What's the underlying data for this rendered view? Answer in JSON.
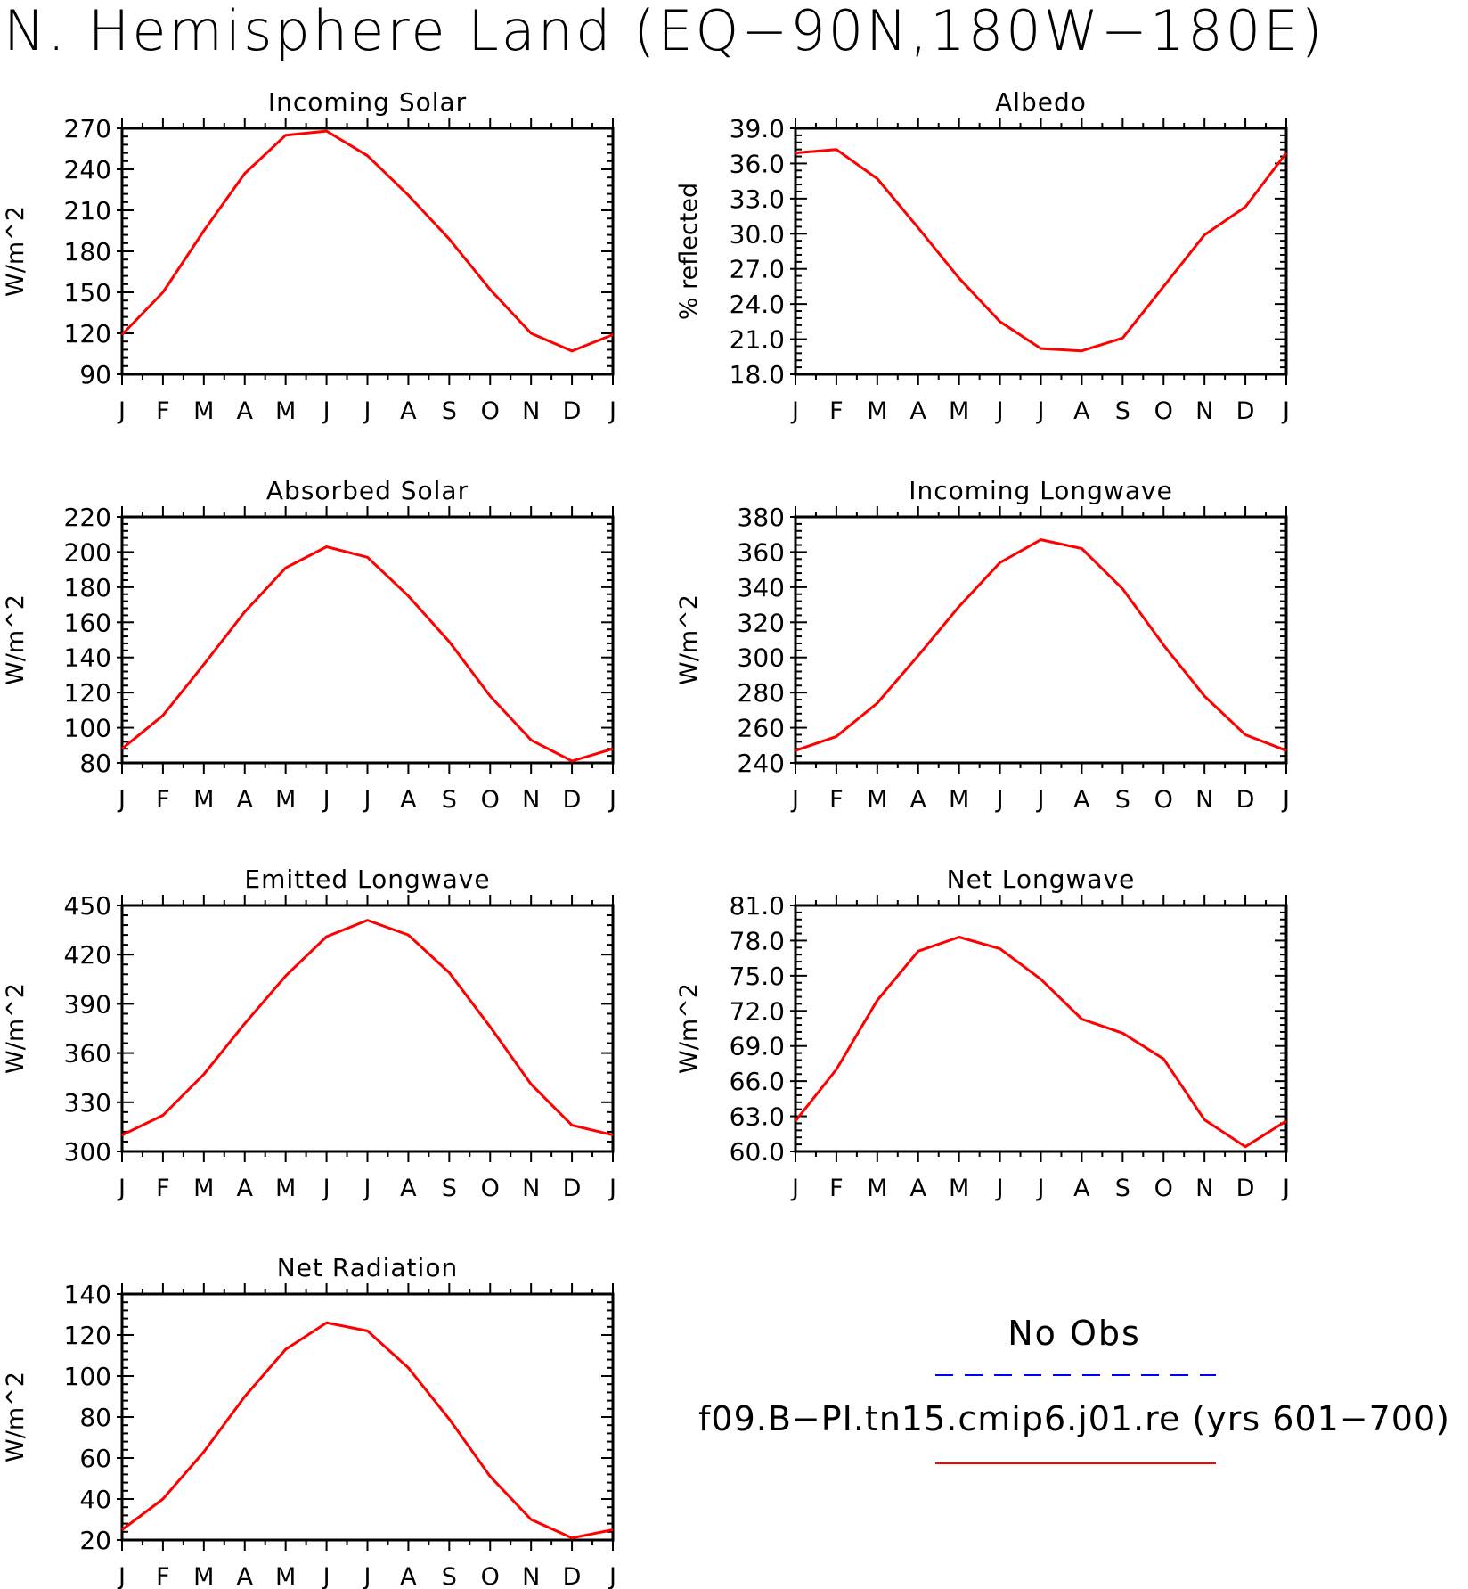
{
  "title": "N. Hemisphere Land (EQ−90N,180W−180E)",
  "line_color": "#ff0000",
  "obs_line_color": "#0000ff",
  "months": [
    "J",
    "F",
    "M",
    "A",
    "M",
    "J",
    "J",
    "A",
    "S",
    "O",
    "N",
    "D",
    "J"
  ],
  "legend": {
    "obs_label": "No Obs",
    "case_label": "f09.B−PI.tn15.cmip6.j01.re (yrs 601−700)"
  },
  "chart_data": [
    {
      "type": "line",
      "title": "Incoming Solar",
      "ylabel": "W/m^2",
      "ylim": [
        90,
        270
      ],
      "yticks": [
        90,
        120,
        150,
        180,
        210,
        240,
        270
      ],
      "ydecimals": 0,
      "values": [
        119,
        150,
        195,
        237,
        265,
        268,
        250,
        221,
        189,
        152,
        120,
        107,
        119
      ]
    },
    {
      "type": "line",
      "title": "Albedo",
      "ylabel": "% reflected",
      "ylim": [
        18,
        39
      ],
      "yticks": [
        18,
        21,
        24,
        27,
        30,
        33,
        36,
        39
      ],
      "ydecimals": 1,
      "values": [
        36.9,
        37.2,
        34.7,
        30.5,
        26.2,
        22.5,
        20.2,
        20.0,
        21.1,
        25.5,
        29.9,
        32.3,
        36.9
      ]
    },
    {
      "type": "line",
      "title": "Absorbed Solar",
      "ylabel": "W/m^2",
      "ylim": [
        80,
        220
      ],
      "yticks": [
        80,
        100,
        120,
        140,
        160,
        180,
        200,
        220
      ],
      "ydecimals": 0,
      "values": [
        88,
        107,
        136,
        166,
        191,
        203,
        197,
        175,
        149,
        118,
        93,
        81,
        88
      ]
    },
    {
      "type": "line",
      "title": "Incoming Longwave",
      "ylabel": "W/m^2",
      "ylim": [
        240,
        380
      ],
      "yticks": [
        240,
        260,
        280,
        300,
        320,
        340,
        360,
        380
      ],
      "ydecimals": 0,
      "values": [
        247,
        255,
        274,
        301,
        329,
        354,
        367,
        362,
        339,
        307,
        278,
        256,
        247
      ]
    },
    {
      "type": "line",
      "title": "Emitted Longwave",
      "ylabel": "W/m^2",
      "ylim": [
        300,
        450
      ],
      "yticks": [
        300,
        330,
        360,
        390,
        420,
        450
      ],
      "ydecimals": 0,
      "values": [
        310,
        322,
        347,
        378,
        407,
        431,
        441,
        432,
        409,
        376,
        341,
        316,
        310
      ]
    },
    {
      "type": "line",
      "title": "Net Longwave",
      "ylabel": "W/m^2",
      "ylim": [
        60,
        81
      ],
      "yticks": [
        60,
        63,
        66,
        69,
        72,
        75,
        78,
        81
      ],
      "ydecimals": 1,
      "values": [
        62.6,
        67.0,
        72.9,
        77.1,
        78.3,
        77.3,
        74.7,
        71.3,
        70.1,
        67.9,
        62.7,
        60.4,
        62.6
      ]
    },
    {
      "type": "line",
      "title": "Net Radiation",
      "ylabel": "W/m^2",
      "ylim": [
        20,
        140
      ],
      "yticks": [
        20,
        40,
        60,
        80,
        100,
        120,
        140
      ],
      "ydecimals": 0,
      "values": [
        25,
        40,
        63,
        90,
        113,
        126,
        122,
        104,
        79,
        51,
        30,
        21,
        25
      ]
    }
  ]
}
